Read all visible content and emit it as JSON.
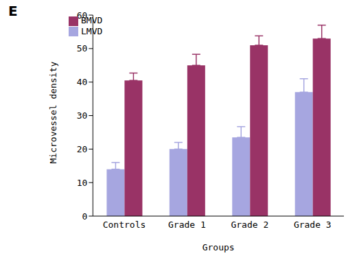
{
  "chart_data": {
    "type": "bar",
    "title": "E",
    "x_label": "Groups",
    "y_label": "Microvessel density",
    "categories": [
      "Controls",
      "Grade 1",
      "Grade 2",
      "Grade 3"
    ],
    "series": [
      {
        "name": "LMVD",
        "color": "#a6a6e0",
        "values": [
          14,
          20,
          23.5,
          37
        ],
        "errors": [
          2,
          2,
          3.2,
          4
        ]
      },
      {
        "name": "BMVD",
        "color": "#993366",
        "values": [
          40.5,
          45,
          51,
          53
        ],
        "errors": [
          2.2,
          3.3,
          2.8,
          4
        ]
      }
    ],
    "ylim": [
      0,
      60
    ],
    "yticks": [
      0,
      10,
      20,
      30,
      40,
      50,
      60
    ],
    "grid": false,
    "legend": "upper left"
  }
}
